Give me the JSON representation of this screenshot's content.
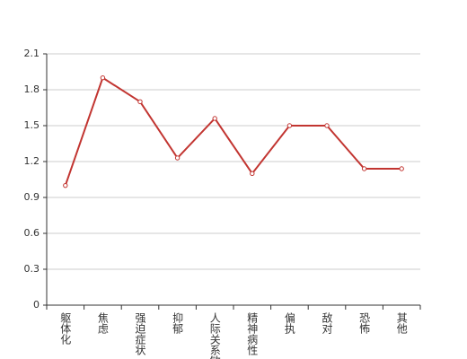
{
  "chart_data": {
    "type": "line",
    "categories": [
      "躯体化",
      "焦虑",
      "强迫症状",
      "抑郁",
      "人际关系敏感",
      "精神病性",
      "偏执",
      "敌对",
      "恐怖",
      "其他"
    ],
    "series": [
      {
        "color": "#c23531",
        "values": [
          1.0,
          1.9,
          1.7,
          1.23,
          1.56,
          1.1,
          1.5,
          1.5,
          1.14,
          1.14
        ]
      }
    ],
    "ylim": [
      0,
      2.1
    ],
    "yticks": [
      0,
      0.3,
      0.6,
      0.9,
      1.2,
      1.5,
      1.8,
      2.1
    ],
    "grid": true
  }
}
